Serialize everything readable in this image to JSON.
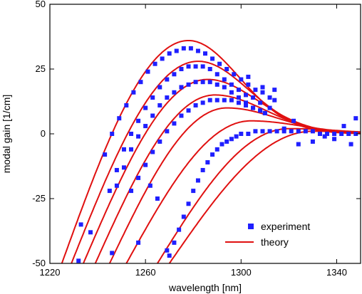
{
  "chart_data": {
    "type": "scatter",
    "title": "",
    "xlabel": "wavelength  [nm]",
    "ylabel": "modal gain  [1/cm]",
    "xlim": [
      1220,
      1350
    ],
    "ylim": [
      -50,
      50
    ],
    "x_ticks": [
      1220,
      1260,
      1300,
      1340
    ],
    "x_tick_labels": [
      "1220",
      "1260",
      "1300",
      "1340"
    ],
    "y_ticks": [
      -50,
      -25,
      0,
      25,
      50
    ],
    "y_tick_labels": [
      "-50",
      "-25",
      "0",
      "25",
      "50"
    ],
    "grid": false,
    "legend_position": "bottom-right",
    "colors": {
      "experiment": "#1f1fff",
      "theory": "#e01010"
    },
    "series": [
      {
        "name": "experiment",
        "type": "scatter",
        "marker": "square",
        "curves": [
          {
            "peak_wavelength": 1279,
            "peak_gain": 33,
            "x_start": 1243,
            "x_end": 1314,
            "points": [
              [
                1243,
                -8
              ],
              [
                1246,
                0
              ],
              [
                1249,
                6
              ],
              [
                1252,
                11
              ],
              [
                1255,
                16
              ],
              [
                1258,
                20
              ],
              [
                1261,
                24
              ],
              [
                1264,
                27
              ],
              [
                1267,
                29
              ],
              [
                1270,
                31
              ],
              [
                1273,
                32
              ],
              [
                1276,
                33
              ],
              [
                1279,
                33
              ],
              [
                1282,
                32
              ],
              [
                1285,
                31
              ],
              [
                1288,
                29
              ],
              [
                1291,
                27
              ],
              [
                1294,
                25
              ],
              [
                1297,
                23
              ],
              [
                1300,
                21
              ],
              [
                1303,
                19
              ],
              [
                1306,
                17
              ],
              [
                1309,
                16
              ],
              [
                1312,
                14
              ],
              [
                1314,
                13
              ]
            ]
          },
          {
            "peak_wavelength": 1282,
            "peak_gain": 26,
            "x_start": 1245,
            "x_end": 1312,
            "points": [
              [
                1245,
                -22
              ],
              [
                1248,
                -14
              ],
              [
                1251,
                -6
              ],
              [
                1254,
                0
              ],
              [
                1257,
                5
              ],
              [
                1260,
                10
              ],
              [
                1263,
                14
              ],
              [
                1266,
                18
              ],
              [
                1269,
                21
              ],
              [
                1272,
                23
              ],
              [
                1275,
                25
              ],
              [
                1278,
                26
              ],
              [
                1281,
                26
              ],
              [
                1284,
                26
              ],
              [
                1287,
                25
              ],
              [
                1290,
                23
              ],
              [
                1293,
                21
              ],
              [
                1296,
                19
              ],
              [
                1299,
                17
              ],
              [
                1302,
                15
              ],
              [
                1305,
                14
              ],
              [
                1308,
                12
              ],
              [
                1312,
                10
              ]
            ]
          },
          {
            "peak_wavelength": 1286,
            "peak_gain": 20,
            "x_start": 1248,
            "x_end": 1310,
            "points": [
              [
                1248,
                -20
              ],
              [
                1251,
                -13
              ],
              [
                1254,
                -6
              ],
              [
                1257,
                -1
              ],
              [
                1260,
                3
              ],
              [
                1263,
                7
              ],
              [
                1266,
                11
              ],
              [
                1269,
                14
              ],
              [
                1272,
                16
              ],
              [
                1275,
                18
              ],
              [
                1278,
                19
              ],
              [
                1281,
                20
              ],
              [
                1284,
                20
              ],
              [
                1287,
                20
              ],
              [
                1290,
                19
              ],
              [
                1293,
                18
              ],
              [
                1296,
                16
              ],
              [
                1299,
                14
              ],
              [
                1302,
                12
              ],
              [
                1305,
                10
              ],
              [
                1308,
                9
              ],
              [
                1310,
                8
              ]
            ]
          },
          {
            "peak_wavelength": 1294,
            "peak_gain": 13,
            "x_start": 1254,
            "x_end": 1310,
            "points": [
              [
                1254,
                -22
              ],
              [
                1257,
                -17
              ],
              [
                1260,
                -12
              ],
              [
                1263,
                -7
              ],
              [
                1266,
                -3
              ],
              [
                1269,
                1
              ],
              [
                1272,
                4
              ],
              [
                1275,
                7
              ],
              [
                1278,
                9
              ],
              [
                1281,
                11
              ],
              [
                1284,
                12
              ],
              [
                1287,
                13
              ],
              [
                1290,
                13
              ],
              [
                1293,
                13
              ],
              [
                1296,
                13
              ],
              [
                1299,
                12
              ],
              [
                1302,
                11
              ],
              [
                1305,
                10
              ],
              [
                1308,
                9
              ],
              [
                1310,
                8
              ]
            ]
          },
          {
            "peak_wavelength": 1330,
            "peak_gain": 1,
            "x_start": 1270,
            "x_end": 1349,
            "points": [
              [
                1270,
                -47
              ],
              [
                1272,
                -42
              ],
              [
                1274,
                -37
              ],
              [
                1276,
                -32
              ],
              [
                1278,
                -27
              ],
              [
                1280,
                -22
              ],
              [
                1282,
                -18
              ],
              [
                1284,
                -14
              ],
              [
                1286,
                -11
              ],
              [
                1288,
                -8
              ],
              [
                1290,
                -6
              ],
              [
                1292,
                -4
              ],
              [
                1294,
                -3
              ],
              [
                1296,
                -2
              ],
              [
                1298,
                -1
              ],
              [
                1300,
                0
              ],
              [
                1303,
                0
              ],
              [
                1306,
                1
              ],
              [
                1309,
                1
              ],
              [
                1312,
                1
              ],
              [
                1315,
                1
              ],
              [
                1318,
                1
              ],
              [
                1321,
                1
              ],
              [
                1324,
                1
              ],
              [
                1327,
                1
              ],
              [
                1330,
                1
              ],
              [
                1333,
                0
              ],
              [
                1336,
                0
              ],
              [
                1339,
                0
              ],
              [
                1342,
                0
              ],
              [
                1345,
                0
              ],
              [
                1348,
                0
              ]
            ]
          },
          {
            "peak_wavelength": null,
            "peak_gain": null,
            "x_start": 1230,
            "x_end": 1349,
            "points": [
              [
                1233,
                -35
              ],
              [
                1237,
                -38
              ],
              [
                1232,
                -49
              ],
              [
                1246,
                -46
              ],
              [
                1257,
                -42
              ],
              [
                1269,
                -45
              ],
              [
                1324,
                -4
              ],
              [
                1330,
                -3
              ],
              [
                1335,
                -1
              ],
              [
                1339,
                -2
              ],
              [
                1343,
                3
              ],
              [
                1346,
                -4
              ],
              [
                1348,
                6
              ],
              [
                1318,
                2
              ],
              [
                1322,
                5
              ],
              [
                1309,
                18
              ],
              [
                1314,
                17
              ],
              [
                1303,
                22
              ],
              [
                1262,
                -20
              ],
              [
                1265,
                -25
              ]
            ]
          }
        ]
      },
      {
        "name": "theory",
        "type": "line",
        "curves": [
          {
            "x_start": 1225,
            "x_end": 1350,
            "peak_wavelength": 1278,
            "peak_gain": 36
          },
          {
            "x_start": 1229,
            "x_end": 1350,
            "peak_wavelength": 1282,
            "peak_gain": 28
          },
          {
            "x_start": 1234,
            "x_end": 1350,
            "peak_wavelength": 1286,
            "peak_gain": 21
          },
          {
            "x_start": 1239,
            "x_end": 1350,
            "peak_wavelength": 1289,
            "peak_gain": 15
          },
          {
            "x_start": 1245,
            "x_end": 1350,
            "peak_wavelength": 1294,
            "peak_gain": 10
          },
          {
            "x_start": 1252,
            "x_end": 1350,
            "peak_wavelength": 1304,
            "peak_gain": 5
          },
          {
            "x_start": 1265,
            "x_end": 1350,
            "peak_wavelength": 1320,
            "peak_gain": 2
          },
          {
            "x_start": 1270,
            "x_end": 1350,
            "peak_wavelength": 1330,
            "peak_gain": 1
          }
        ]
      }
    ],
    "legend": [
      {
        "label": "experiment",
        "marker": "square"
      },
      {
        "label": "theory",
        "marker": "line"
      }
    ]
  }
}
